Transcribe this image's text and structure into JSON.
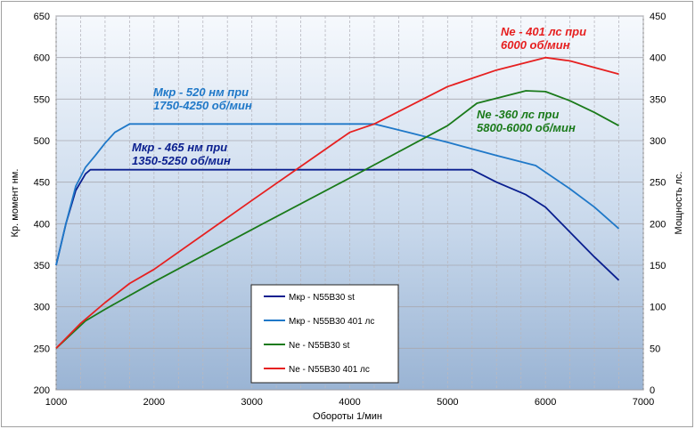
{
  "chart_data": {
    "type": "line",
    "xlabel": "Обороты  1/мин",
    "ylabel_left": "Кр.  момент  нм.",
    "ylabel_right": "Мощность  лс.",
    "xlim": [
      1000,
      7000
    ],
    "ylim_left": [
      200,
      650
    ],
    "ylim_right": [
      0,
      450
    ],
    "x_ticks": [
      1000,
      2000,
      3000,
      4000,
      5000,
      6000,
      7000
    ],
    "y_left_ticks": [
      200,
      250,
      300,
      350,
      400,
      450,
      500,
      550,
      600,
      650
    ],
    "y_right_ticks": [
      0,
      50,
      100,
      150,
      200,
      250,
      300,
      350,
      400,
      450
    ],
    "grid": true,
    "legend_position": "bottom-center",
    "series": [
      {
        "name": "Мкр - N55B30 st",
        "axis": "left",
        "color": "#0a1f8f",
        "points": [
          [
            1000,
            350
          ],
          [
            1100,
            400
          ],
          [
            1200,
            440
          ],
          [
            1300,
            460
          ],
          [
            1350,
            465
          ],
          [
            2000,
            465
          ],
          [
            3000,
            465
          ],
          [
            4000,
            465
          ],
          [
            5000,
            465
          ],
          [
            5250,
            465
          ],
          [
            5500,
            450
          ],
          [
            5800,
            435
          ],
          [
            6000,
            420
          ],
          [
            6250,
            390
          ],
          [
            6500,
            360
          ],
          [
            6750,
            332
          ]
        ]
      },
      {
        "name": "Мкр - N55B30 401 лс",
        "axis": "left",
        "color": "#1f78c8",
        "points": [
          [
            1000,
            350
          ],
          [
            1100,
            400
          ],
          [
            1200,
            445
          ],
          [
            1300,
            468
          ],
          [
            1400,
            482
          ],
          [
            1500,
            497
          ],
          [
            1600,
            510
          ],
          [
            1750,
            520
          ],
          [
            2000,
            520
          ],
          [
            3000,
            520
          ],
          [
            4000,
            520
          ],
          [
            4250,
            520
          ],
          [
            4600,
            510
          ],
          [
            5000,
            498
          ],
          [
            5500,
            482
          ],
          [
            5900,
            470
          ],
          [
            6250,
            442
          ],
          [
            6500,
            420
          ],
          [
            6750,
            394
          ]
        ]
      },
      {
        "name": "Ne  -  N55B30 st",
        "axis": "right",
        "color": "#1a7a1a",
        "points": [
          [
            1000,
            50
          ],
          [
            1300,
            83
          ],
          [
            1500,
            97
          ],
          [
            2000,
            130
          ],
          [
            3000,
            193
          ],
          [
            4000,
            255
          ],
          [
            5000,
            318
          ],
          [
            5300,
            345
          ],
          [
            5800,
            360
          ],
          [
            6000,
            359
          ],
          [
            6250,
            348
          ],
          [
            6500,
            334
          ],
          [
            6750,
            318
          ]
        ]
      },
      {
        "name": "Ne  -  N55B30 401 лс",
        "axis": "right",
        "color": "#e62020",
        "points": [
          [
            1000,
            50
          ],
          [
            1250,
            80
          ],
          [
            1500,
            105
          ],
          [
            1750,
            128
          ],
          [
            2000,
            145
          ],
          [
            3000,
            228
          ],
          [
            4000,
            310
          ],
          [
            4250,
            320
          ],
          [
            5000,
            365
          ],
          [
            5500,
            385
          ],
          [
            6000,
            400
          ],
          [
            6250,
            396
          ],
          [
            6500,
            388
          ],
          [
            6750,
            380
          ]
        ]
      }
    ],
    "annotations": [
      {
        "lines": [
          "Ne - 401 лс при",
          "6000 об/мин"
        ],
        "color": "#e62020"
      },
      {
        "lines": [
          "Мкр - 520 нм при",
          "1750-4250 об/мин"
        ],
        "color": "#1f78c8"
      },
      {
        "lines": [
          "Ne -360 лс при",
          "5800-6000 об/мин"
        ],
        "color": "#1a7a1a"
      },
      {
        "lines": [
          "Мкр - 465 нм при",
          "1350-5250 об/мин"
        ],
        "color": "#0a1f8f"
      }
    ]
  }
}
